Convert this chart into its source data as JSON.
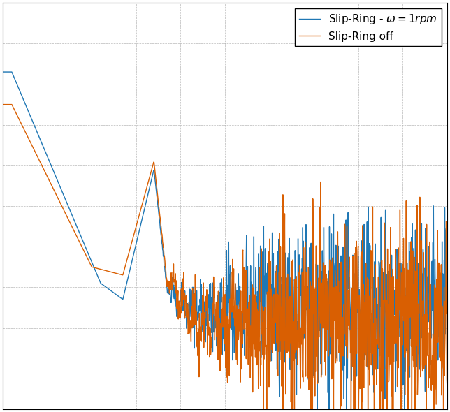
{
  "line1_color": "#1f77b4",
  "line2_color": "#d95f02",
  "line1_label": "Slip-Ring - $\\omega = 1rpm$",
  "line2_label": "Slip-Ring off",
  "background_color": "#ffffff",
  "figsize": [
    6.44,
    5.9
  ],
  "dpi": 100,
  "linewidth": 1.0,
  "legend_fontsize": 11,
  "grid_linestyle": "--",
  "grid_linewidth": 0.5,
  "grid_color": "#b0b0b0"
}
